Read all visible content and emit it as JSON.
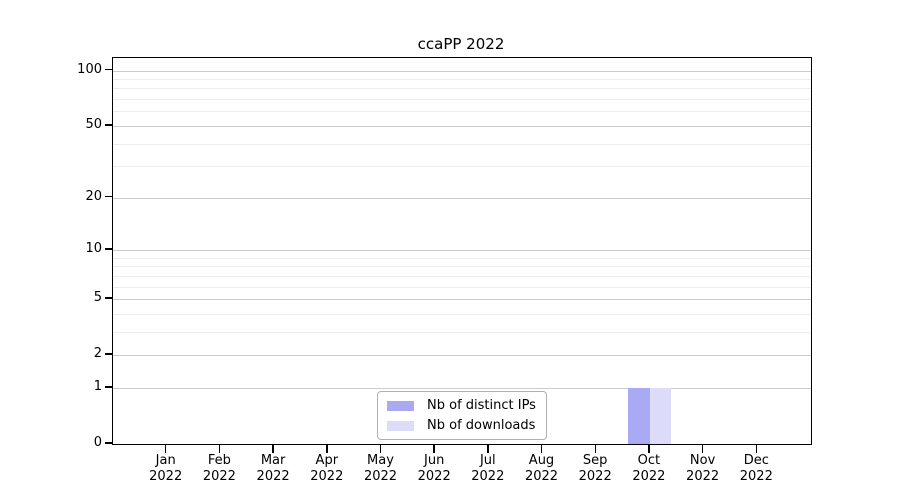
{
  "chart_data": {
    "type": "bar",
    "title": "ccaPP 2022",
    "categories": [
      "Jan",
      "Feb",
      "Mar",
      "Apr",
      "May",
      "Jun",
      "Jul",
      "Aug",
      "Sep",
      "Oct",
      "Nov",
      "Dec"
    ],
    "category_year": "2022",
    "series": [
      {
        "name": "Nb of distinct IPs",
        "color": "#a9a9f4",
        "values": [
          0,
          0,
          0,
          0,
          0,
          0,
          0,
          0,
          0,
          1,
          0,
          0
        ]
      },
      {
        "name": "Nb of downloads",
        "color": "#dcdcf9",
        "values": [
          0,
          0,
          0,
          0,
          0,
          0,
          0,
          0,
          0,
          1,
          0,
          0
        ]
      }
    ],
    "xlabel": "",
    "ylabel": "",
    "yscale": "log1p",
    "y_ticks": [
      0,
      1,
      2,
      5,
      10,
      20,
      50,
      100
    ],
    "y_minor_ticks": [
      3,
      4,
      6,
      7,
      8,
      9,
      30,
      40,
      60,
      70,
      80,
      90
    ],
    "ylim": [
      0,
      117
    ],
    "grid": "horizontal",
    "legend_position": "bottom-center",
    "colors": {
      "major_grid": "#cccccc",
      "minor_grid": "#ededed",
      "axis": "#000000",
      "background": "#ffffff"
    }
  }
}
